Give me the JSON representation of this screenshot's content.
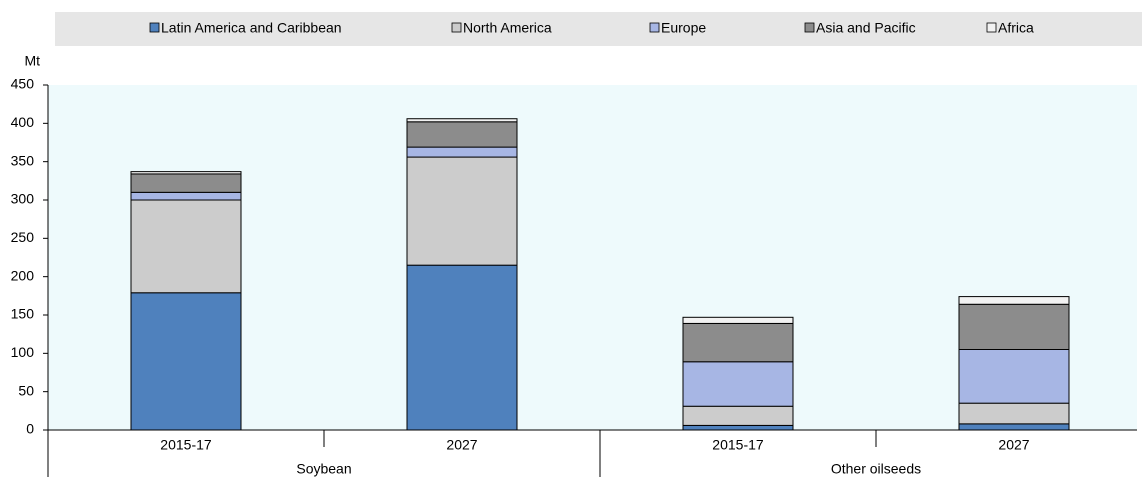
{
  "chart_data": {
    "type": "stacked_bar",
    "y_label": "Mt",
    "groups": [
      {
        "name": "Soybean",
        "categories": [
          "2015-17",
          "2027"
        ]
      },
      {
        "name": "Other oilseeds",
        "categories": [
          "2015-17",
          "2027"
        ]
      }
    ],
    "series": [
      {
        "name": "Latin America and Caribbean",
        "color": "#4f81bd",
        "values": [
          179,
          215,
          6,
          8
        ]
      },
      {
        "name": "North America",
        "color": "#cccccc",
        "values": [
          121,
          141,
          25,
          27
        ]
      },
      {
        "name": "Europe",
        "color": "#a7b6e4",
        "values": [
          10,
          13,
          58,
          70
        ]
      },
      {
        "name": "Asia and Pacific",
        "color": "#8c8c8c",
        "values": [
          24,
          33,
          50,
          59
        ]
      },
      {
        "name": "Africa",
        "color": "#f2f2f2",
        "values": [
          3,
          4,
          8,
          10
        ]
      }
    ],
    "ylim": [
      0,
      450
    ],
    "yticks": [
      0,
      50,
      100,
      150,
      200,
      250,
      300,
      350,
      400,
      450
    ],
    "legend": "top",
    "plot_background": "#eefafc"
  }
}
